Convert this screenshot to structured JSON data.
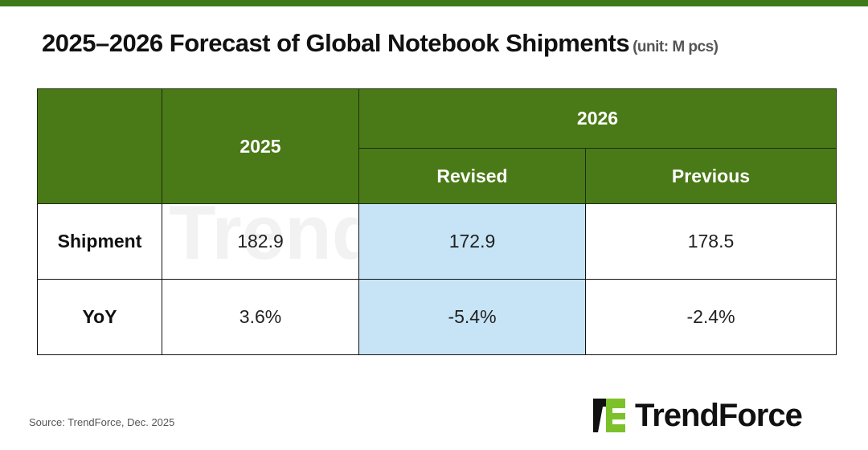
{
  "title": "2025–2026 Forecast of Global Notebook Shipments",
  "unit": "(unit: M pcs)",
  "table": {
    "header": {
      "col_2025": "2025",
      "col_2026": "2026",
      "revised": "Revised",
      "previous": "Previous"
    },
    "rows": [
      {
        "label": "Shipment",
        "v2025": "182.9",
        "revised": "172.9",
        "previous": "178.5"
      },
      {
        "label": "YoY",
        "v2025": "3.6%",
        "revised": "-5.4%",
        "previous": "-2.4%"
      }
    ]
  },
  "source": "Source: TrendForce, Dec. 2025",
  "logo": "TrendForce",
  "colors": {
    "header_green": "#4a7a17",
    "highlight": "#c6e4f6",
    "logo_green": "#7cc12a"
  }
}
